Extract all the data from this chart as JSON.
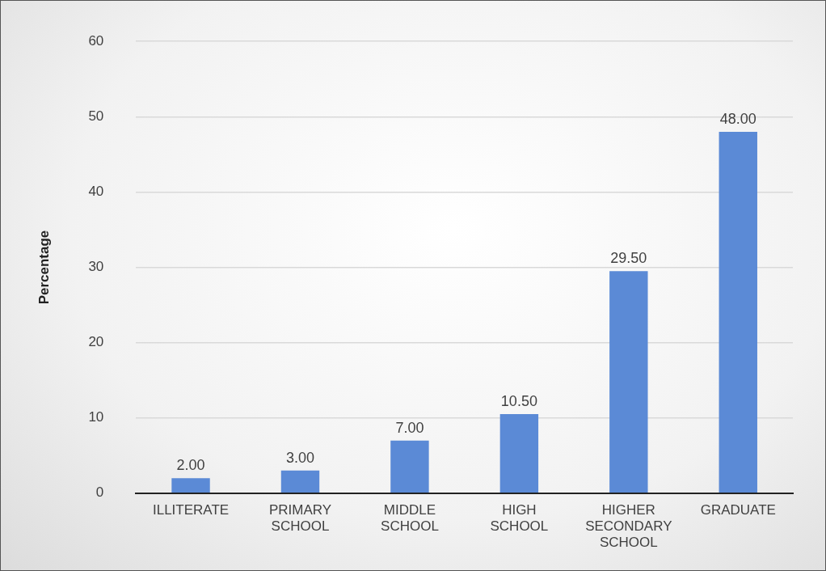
{
  "chart_data": {
    "type": "bar",
    "ylabel": "Percentage",
    "categories": [
      "ILLITERATE",
      "PRIMARY SCHOOL",
      "MIDDLE SCHOOL",
      "HIGH SCHOOL",
      "HIGHER SECONDARY SCHOOL",
      "GRADUATE"
    ],
    "values": [
      2,
      3,
      7,
      10.5,
      29.5,
      48
    ],
    "value_labels": [
      "2.00",
      "3.00",
      "7.00",
      "10.50",
      "29.50",
      "48.00"
    ],
    "color": "#5b8ad6",
    "ylim": [
      0,
      60
    ],
    "yticks": [
      0,
      10,
      20,
      30,
      40,
      50,
      60
    ],
    "grid": "y",
    "legend": false
  }
}
